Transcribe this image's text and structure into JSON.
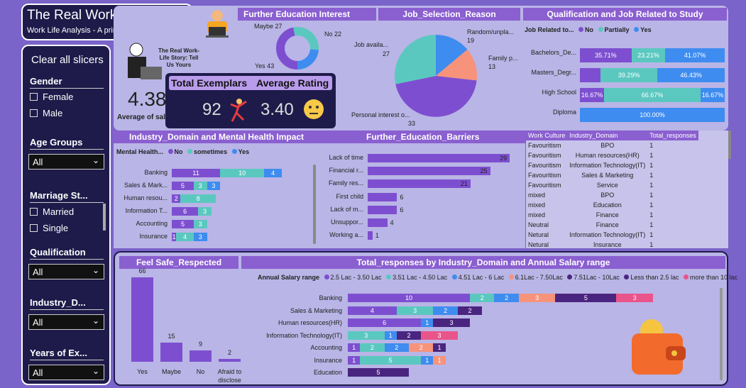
{
  "header": {
    "title": "The Real Work-Life Story:",
    "subtitle": "Work Life Analysis - A primary Data perspective"
  },
  "slicers": {
    "clear_all": "Clear all slicers",
    "gender": {
      "title": "Gender",
      "options": [
        "Female",
        "Male"
      ]
    },
    "age": {
      "title": "Age Groups",
      "value": "All"
    },
    "marriage": {
      "title": "Marriage St...",
      "options": [
        "Married",
        "Single"
      ]
    },
    "qualification": {
      "title": "Qualification",
      "value": "All"
    },
    "industry": {
      "title": "Industry_D...",
      "value": "All"
    },
    "years": {
      "title": "Years of Ex...",
      "value": "All"
    }
  },
  "kpi": {
    "illus_text": "The Real Work-Life Story: Tell Us Yours",
    "avg_salary_value": "4.38",
    "avg_salary_label": "Average of salar...",
    "exemplars_title": "Total Exemplars",
    "exemplars_value": "92",
    "rating_title": "Average Rating",
    "rating_value": "3.40"
  },
  "further_edu": {
    "title": "Further Education Interest",
    "labels": [
      "Maybe 27",
      "No 22",
      "Yes 43"
    ]
  },
  "job_reason": {
    "title": "Job_Selection_Reason",
    "labels": [
      [
        "Job availa...",
        "27"
      ],
      [
        "Random/unpla...",
        "19"
      ],
      [
        "Family p...",
        "13"
      ],
      [
        "Personal interest o...",
        "33"
      ]
    ]
  },
  "qual_job": {
    "title": "Qualification and Job Related to Study",
    "legend_title": "Job Related to...",
    "legend": [
      "No",
      "Partially",
      "Yes"
    ],
    "rows": [
      {
        "label": "Bachelors_De...",
        "no": "35.71%",
        "partially": "23.21%",
        "yes": "41.07%"
      },
      {
        "label": "Masters_Degr...",
        "no": "",
        "partially": "39.29%",
        "yes": "46.43%"
      },
      {
        "label": "High School",
        "no": "16.67%",
        "partially": "66.67%",
        "yes": "16.67%"
      },
      {
        "label": "Diploma",
        "no": "",
        "partially": "",
        "yes": "100.00%"
      }
    ]
  },
  "mental": {
    "title": "Industry_Domain and Mental Health Impact",
    "legend_title": "Mental Health...",
    "legend": [
      "No",
      "sometimes",
      "Yes"
    ],
    "rows": [
      {
        "label": "Banking",
        "v": [
          "11",
          "10",
          "4"
        ]
      },
      {
        "label": "Sales & Mark...",
        "v": [
          "5",
          "3",
          "3"
        ]
      },
      {
        "label": "Human resou...",
        "v": [
          "2",
          "8",
          ""
        ]
      },
      {
        "label": "Information T...",
        "v": [
          "6",
          "3",
          ""
        ]
      },
      {
        "label": "Accounting",
        "v": [
          "5",
          "3",
          ""
        ]
      },
      {
        "label": "Insurance",
        "v": [
          "1",
          "4",
          "3"
        ]
      }
    ]
  },
  "barriers": {
    "title": "Further_Education_Barriers",
    "rows": [
      {
        "label": "Lack of time",
        "value": "29"
      },
      {
        "label": "Financial r...",
        "value": "25"
      },
      {
        "label": "Family res...",
        "value": "21"
      },
      {
        "label": "First child",
        "value": "6"
      },
      {
        "label": "Lack of m...",
        "value": "6"
      },
      {
        "label": "Unsuppor...",
        "value": "4"
      },
      {
        "label": "Working a...",
        "value": "1"
      }
    ]
  },
  "culture": {
    "headers": [
      "Work Culture",
      "Industry_Domain",
      "Total_responses"
    ],
    "rows": [
      [
        "Favouritism",
        "BPO",
        "1"
      ],
      [
        "Favouritism",
        "Human resources(HR)",
        "1"
      ],
      [
        "Favouritism",
        "Information Technology(IT)",
        "1"
      ],
      [
        "Favouritism",
        "Sales & Marketing",
        "1"
      ],
      [
        "Favouritism",
        "Service",
        "1"
      ],
      [
        "mixed",
        "BPO",
        "1"
      ],
      [
        "mixed",
        "Education",
        "1"
      ],
      [
        "mixed",
        "Finance",
        "1"
      ],
      [
        "Neutral",
        "Finance",
        "1"
      ],
      [
        "Netural",
        "Information Technology(IT)",
        "1"
      ],
      [
        "Netural",
        "Insurance",
        "1"
      ]
    ]
  },
  "safe": {
    "title": "Feel Safe_Respected",
    "bars": [
      {
        "label": "Yes",
        "value": "66"
      },
      {
        "label": "Maybe",
        "value": "15"
      },
      {
        "label": "No",
        "value": "9"
      },
      {
        "label": "Afraid to disclose",
        "value": "2"
      }
    ]
  },
  "salary": {
    "title": "Total_responses by Industry_Domain and Annual Salary range",
    "legend_title": "Annual Salary range",
    "legend": [
      "2.5 Lac - 3.50 Lac",
      "3.51 Lac - 4.50 Lac",
      "4.51 Lac - 6 Lac",
      "6.1Lac - 7.50Lac",
      "7.51Lac - 10Lac",
      "Less than 2.5 lac",
      "more than 10 lac"
    ],
    "rows": [
      {
        "label": "Banking",
        "v": [
          "10",
          "2",
          "2",
          "3",
          "5",
          "3"
        ]
      },
      {
        "label": "Sales & Marketing",
        "v": [
          "4",
          "3",
          "2",
          "2"
        ]
      },
      {
        "label": "Human resources(HR)",
        "v": [
          "6",
          "1",
          "3"
        ]
      },
      {
        "label": "Information Technology(IT)",
        "v": [
          "3",
          "1",
          "2",
          "3"
        ]
      },
      {
        "label": "Accounting",
        "v": [
          "1",
          "2",
          "2",
          "2",
          "1"
        ]
      },
      {
        "label": "Insurance",
        "v": [
          "1",
          "5",
          "1",
          "1"
        ]
      },
      {
        "label": "Education",
        "v": [
          "5"
        ]
      }
    ]
  },
  "colors": {
    "purple": "#7d4fd0",
    "teal": "#5bc8c0",
    "blue": "#3e8cf0",
    "orange": "#f7937b",
    "dark_purple": "#4a2580",
    "pink": "#e9548a"
  },
  "icons": [
    "person-laptop-icon",
    "dancer-icon",
    "emoji-face-icon",
    "wallet-icon"
  ]
}
